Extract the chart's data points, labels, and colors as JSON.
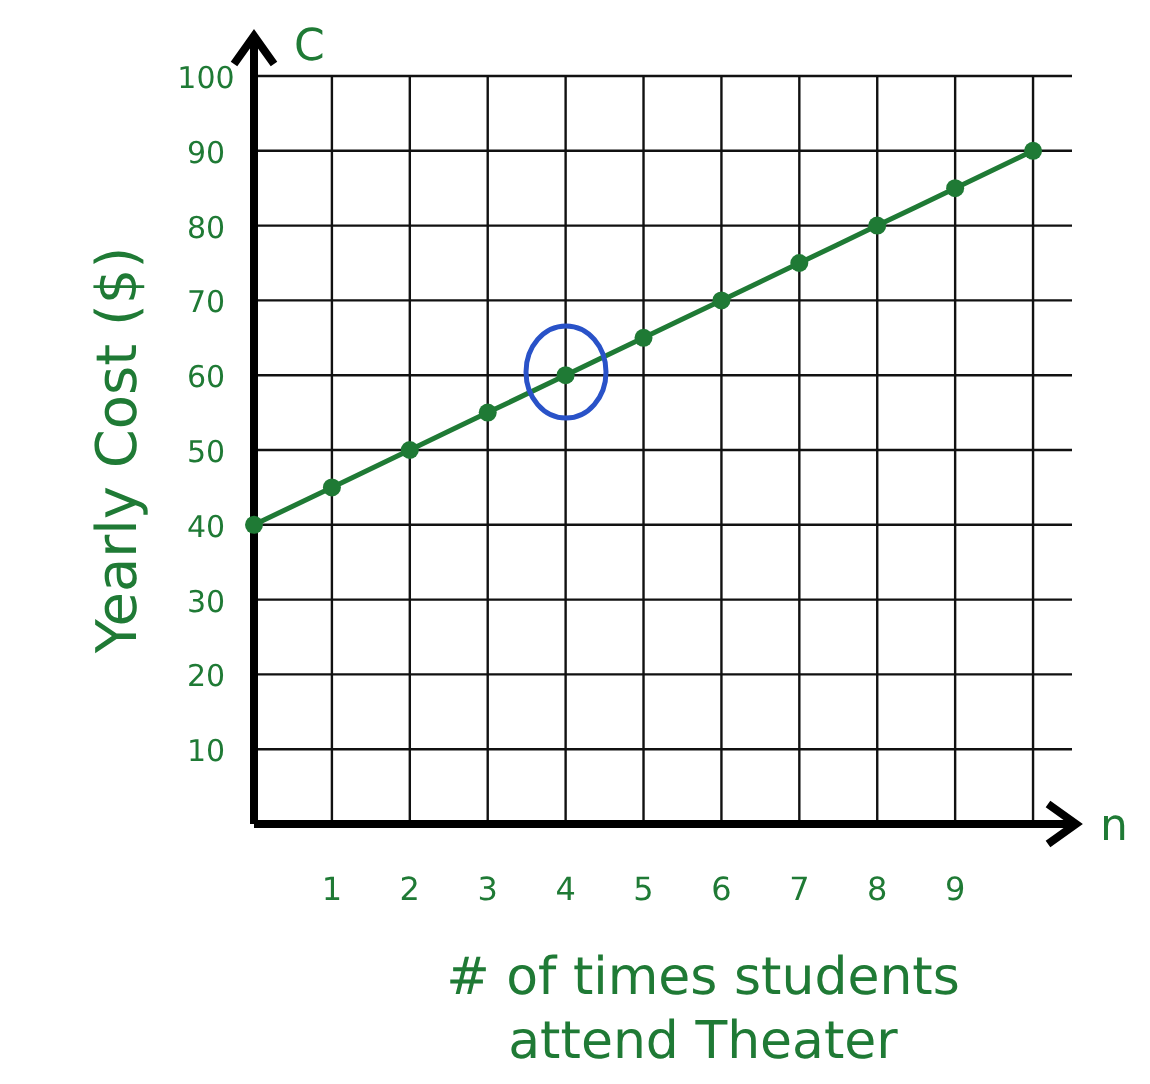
{
  "chart_data": {
    "type": "line",
    "xlabel": "# of times students attend Theater",
    "ylabel": "Yearly Cost ($)",
    "annotations": [
      "C",
      "n"
    ],
    "x": [
      0,
      1,
      2,
      3,
      4,
      5,
      6,
      7,
      8,
      9,
      10
    ],
    "series": [
      {
        "color": "#1f7a35",
        "values": [
          40,
          45,
          50,
          55,
          60,
          65,
          70,
          75,
          80,
          85,
          90
        ]
      }
    ],
    "xlim": [
      0,
      10.5
    ],
    "ylim": [
      0,
      100
    ],
    "xticks": [
      1,
      2,
      3,
      4,
      5,
      6,
      7,
      8,
      9,
      {
        "value": 10,
        "label": null
      }
    ],
    "yticks": [
      10,
      20,
      30,
      40,
      50,
      60,
      70,
      80,
      90,
      100
    ],
    "grid": true,
    "marker": "circle",
    "line_style": "solid"
  }
}
